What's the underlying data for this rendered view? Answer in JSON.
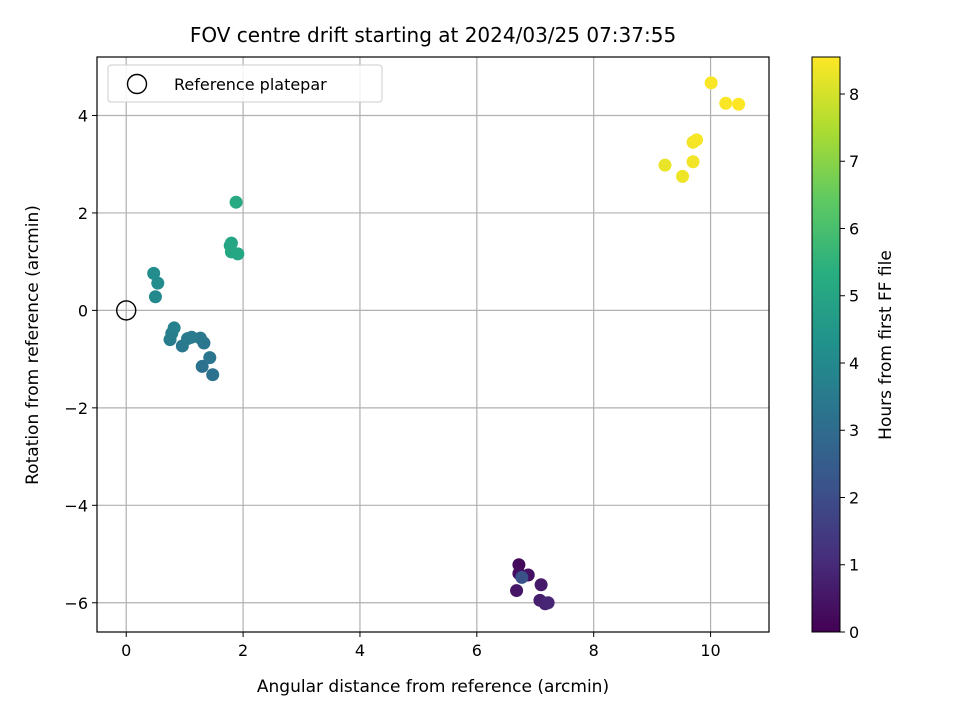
{
  "chart_data": {
    "type": "scatter",
    "title": "FOV centre drift starting at 2024/03/25 07:37:55",
    "xlabel": "Angular distance from reference (arcmin)",
    "ylabel": "Rotation from reference (arcmin)",
    "xlim": [
      -0.5,
      11.0
    ],
    "ylim": [
      -6.6,
      5.2
    ],
    "xticks": [
      0,
      2,
      4,
      6,
      8,
      10
    ],
    "yticks": [
      -6,
      -4,
      -2,
      0,
      2,
      4
    ],
    "xtick_labels": [
      "0",
      "2",
      "4",
      "6",
      "8",
      "10"
    ],
    "ytick_labels": [
      "−6",
      "−4",
      "−2",
      "0",
      "2",
      "4"
    ],
    "grid": true,
    "colormap": "viridis",
    "colorbar": {
      "label": "Hours from first FF file",
      "min": 0,
      "max": 8.55,
      "ticks": [
        0,
        1,
        2,
        3,
        4,
        5,
        6,
        7,
        8
      ],
      "tick_labels": [
        "0",
        "1",
        "2",
        "3",
        "4",
        "5",
        "6",
        "7",
        "8"
      ]
    },
    "legend": {
      "position": "top-left",
      "entries": [
        {
          "label": "Reference platepar",
          "marker": "open-circle"
        }
      ]
    },
    "reference_point": {
      "x": 0,
      "y": 0
    },
    "points": [
      {
        "x": 6.72,
        "y": -5.22,
        "hours": 0.2
      },
      {
        "x": 6.72,
        "y": -5.4,
        "hours": 0.3
      },
      {
        "x": 6.88,
        "y": -5.43,
        "hours": 0.4
      },
      {
        "x": 6.68,
        "y": -5.75,
        "hours": 0.5
      },
      {
        "x": 7.1,
        "y": -5.63,
        "hours": 0.6
      },
      {
        "x": 7.08,
        "y": -5.95,
        "hours": 0.7
      },
      {
        "x": 7.17,
        "y": -6.02,
        "hours": 0.8
      },
      {
        "x": 7.22,
        "y": -6.0,
        "hours": 0.9
      },
      {
        "x": 6.77,
        "y": -5.48,
        "hours": 2.1
      },
      {
        "x": 1.48,
        "y": -1.32,
        "hours": 3.2
      },
      {
        "x": 1.3,
        "y": -1.15,
        "hours": 3.2
      },
      {
        "x": 1.43,
        "y": -0.97,
        "hours": 3.3
      },
      {
        "x": 1.33,
        "y": -0.67,
        "hours": 3.3
      },
      {
        "x": 1.27,
        "y": -0.57,
        "hours": 3.4
      },
      {
        "x": 0.96,
        "y": -0.73,
        "hours": 3.4
      },
      {
        "x": 1.05,
        "y": -0.58,
        "hours": 3.5
      },
      {
        "x": 1.12,
        "y": -0.55,
        "hours": 3.5
      },
      {
        "x": 0.75,
        "y": -0.6,
        "hours": 3.6
      },
      {
        "x": 0.78,
        "y": -0.47,
        "hours": 3.6
      },
      {
        "x": 0.82,
        "y": -0.36,
        "hours": 3.7
      },
      {
        "x": 0.5,
        "y": 0.28,
        "hours": 4.0
      },
      {
        "x": 0.54,
        "y": 0.56,
        "hours": 4.1
      },
      {
        "x": 0.47,
        "y": 0.76,
        "hours": 4.1
      },
      {
        "x": 1.8,
        "y": 1.38,
        "hours": 5.0
      },
      {
        "x": 1.78,
        "y": 1.33,
        "hours": 5.0
      },
      {
        "x": 1.8,
        "y": 1.2,
        "hours": 5.1
      },
      {
        "x": 1.91,
        "y": 1.16,
        "hours": 5.1
      },
      {
        "x": 1.88,
        "y": 2.22,
        "hours": 5.2
      },
      {
        "x": 9.22,
        "y": 2.98,
        "hours": 8.3
      },
      {
        "x": 9.52,
        "y": 2.75,
        "hours": 8.35
      },
      {
        "x": 9.7,
        "y": 3.05,
        "hours": 8.4
      },
      {
        "x": 9.7,
        "y": 3.45,
        "hours": 8.4
      },
      {
        "x": 9.76,
        "y": 3.5,
        "hours": 8.45
      },
      {
        "x": 10.01,
        "y": 4.67,
        "hours": 8.5
      },
      {
        "x": 10.26,
        "y": 4.25,
        "hours": 8.5
      },
      {
        "x": 10.48,
        "y": 4.23,
        "hours": 8.55
      }
    ]
  }
}
